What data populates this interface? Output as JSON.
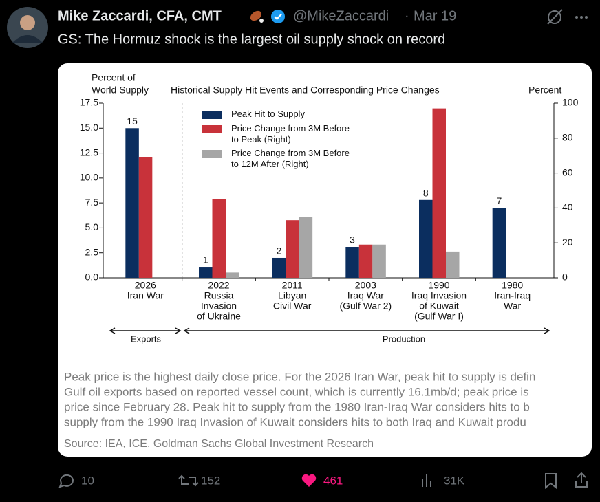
{
  "tweet": {
    "author": "Mike Zaccardi, CFA, CMT",
    "handle": "@MikeZaccardi",
    "separator": "·",
    "date": "Mar 19",
    "text": "GS: The Hormuz shock is the largest oil supply shock on record",
    "stats": {
      "replies": 10,
      "reposts": 152,
      "likes": 461,
      "views": "31K"
    }
  },
  "chart_data": {
    "type": "bar",
    "title": "Historical Supply Hit Events and Corresponding Price Changes",
    "y_label": [
      "Percent of",
      "World Supply"
    ],
    "y2_label": "Percent",
    "categories": [
      [
        "2026",
        "Iran War"
      ],
      [
        "2022",
        "Russia",
        "Invasion",
        "of Ukraine"
      ],
      [
        "2011",
        "Libyan",
        "Civil War"
      ],
      [
        "2003",
        "Iraq War",
        "(Gulf War 2)"
      ],
      [
        "1990",
        "Iraq Invasion",
        "of Kuwait",
        "(Gulf War I)"
      ],
      [
        "1980",
        "Iran-Iraq",
        "War"
      ]
    ],
    "series": [
      {
        "name": "Peak Hit to Supply",
        "color": "#0b2e5f",
        "values": [
          15,
          1.1,
          2.0,
          3.1,
          7.8,
          7.0
        ],
        "value_labels": [
          "15",
          "1",
          "2",
          "3",
          "8",
          "7"
        ]
      },
      {
        "name": "Price Change from 3M Before\nto Peak (Right)",
        "color": "#c8323a",
        "axis": "y2",
        "values": [
          69,
          45,
          33,
          19,
          97,
          null
        ]
      },
      {
        "name": "Price Change from 3M Before\nto 12M After (Right)",
        "color": "#a6a6a6",
        "axis": "y2",
        "values": [
          null,
          3,
          35,
          19,
          15,
          null
        ]
      }
    ],
    "ylim": [
      0,
      17.5
    ],
    "yticks": [
      {
        "value": 0,
        "label": "0.0"
      },
      2.5,
      {
        "value": 5,
        "label": "5.0"
      },
      7.5,
      {
        "value": 10,
        "label": "10.0"
      },
      12.5,
      {
        "value": 15,
        "label": "15.0"
      },
      17.5
    ],
    "y2lim": [
      0,
      100
    ],
    "y2ticks": [
      0,
      20,
      40,
      60,
      80,
      100
    ],
    "group_labels": [
      "Exports",
      "Production"
    ],
    "footnote": [
      "Peak price is the highest daily close price. For the 2026 Iran War, peak hit to supply is defin",
      "Gulf oil exports based on reported vessel count, which is currently 16.1mb/d; peak price is",
      "price since February 28. Peak hit to supply from the 1980 Iran-Iraq War considers hits to b",
      "supply from the 1990 Iraq Invasion of Kuwait considers hits to both Iraq and Kuwait produ"
    ],
    "source": "Source: IEA, ICE, Goldman Sachs Global Investment Research"
  }
}
